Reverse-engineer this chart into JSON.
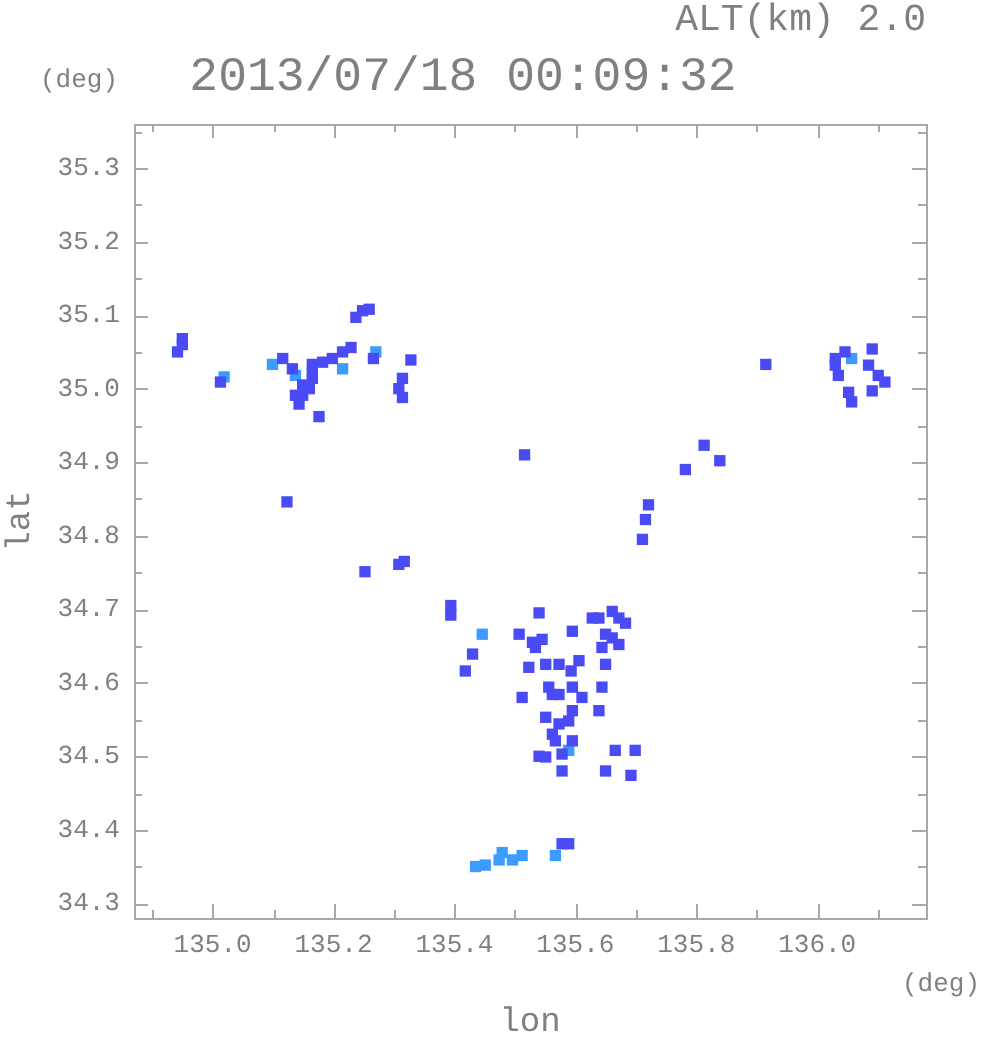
{
  "chart_data": {
    "type": "scatter",
    "title": "2013/07/18 00:09:32",
    "xlabel": "lon",
    "ylabel": "lat",
    "annotations": [
      "ALT(km) 2.0",
      "(deg)",
      "(deg)"
    ],
    "marker": "square",
    "xlim": [
      134.87,
      136.18
    ],
    "ylim": [
      34.28,
      35.36
    ],
    "xticks": [
      {
        "value": 134.9,
        "label": null
      },
      {
        "value": 135,
        "label": "135.0"
      },
      {
        "value": 135.1,
        "label": null
      },
      135.2,
      {
        "value": 135.3,
        "label": null
      },
      135.4,
      {
        "value": 135.5,
        "label": null
      },
      135.6,
      {
        "value": 135.7,
        "label": null
      },
      135.8,
      {
        "value": 135.9,
        "label": null
      },
      {
        "value": 136,
        "label": "136.0"
      },
      {
        "value": 136.1,
        "label": null
      }
    ],
    "yticks": [
      34.3,
      {
        "value": 34.35,
        "label": null
      },
      34.4,
      {
        "value": 34.45,
        "label": null
      },
      34.5,
      {
        "value": 34.55,
        "label": null
      },
      34.6,
      {
        "value": 34.65,
        "label": null
      },
      34.7,
      {
        "value": 34.75,
        "label": null
      },
      34.8,
      {
        "value": 34.85,
        "label": null
      },
      34.9,
      {
        "value": 34.95,
        "label": null
      },
      {
        "value": 35,
        "label": "35.0"
      },
      {
        "value": 35.05,
        "label": null
      },
      35.1,
      {
        "value": 35.15,
        "label": null
      },
      35.2,
      {
        "value": 35.25,
        "label": null
      },
      35.3,
      {
        "value": 35.35,
        "label": null
      }
    ],
    "series": [
      {
        "color": "#4b4bf5",
        "x": [
          134.95,
          134.95,
          134.942,
          135.013,
          135.116,
          135.149,
          135.149,
          135.132,
          135.16,
          135.143,
          135.165,
          135.137,
          135.165,
          135.182,
          135.198,
          135.215,
          135.229,
          135.165,
          135.176,
          135.248,
          135.237,
          135.259,
          135.266,
          135.328,
          135.308,
          135.314,
          135.314,
          135.123,
          135.915,
          136.046,
          136.091,
          136.085,
          136.112,
          136.091,
          136.052,
          136.057,
          136.03,
          136.035,
          136.03,
          136.101,
          135.516,
          135.813,
          135.782,
          135.839,
          135.721,
          135.716,
          135.711,
          135.252,
          135.308,
          135.317,
          135.394,
          135.394,
          135.54,
          135.661,
          135.672,
          135.639,
          135.683,
          135.628,
          135.43,
          135.418,
          135.507,
          135.529,
          135.545,
          135.534,
          135.595,
          135.65,
          135.606,
          135.593,
          135.573,
          135.551,
          135.523,
          135.644,
          135.661,
          135.672,
          135.65,
          135.512,
          135.562,
          135.611,
          135.556,
          135.644,
          135.639,
          135.595,
          135.573,
          135.595,
          135.589,
          135.551,
          135.573,
          135.562,
          135.567,
          135.595,
          135.578,
          135.54,
          135.551,
          135.578,
          135.666,
          135.65,
          135.692,
          135.699,
          135.578,
          135.589
        ],
        "values": [
          35.068,
          35.06,
          35.05,
          35.009,
          35.041,
          35.005,
          34.991,
          35.027,
          35.0,
          34.979,
          35.022,
          34.991,
          35.014,
          35.036,
          35.041,
          35.05,
          35.056,
          35.033,
          34.962,
          35.106,
          35.097,
          35.108,
          35.041,
          35.039,
          35.0,
          35.014,
          34.988,
          34.846,
          35.033,
          35.05,
          35.054,
          35.032,
          35.009,
          34.997,
          34.995,
          34.982,
          35.032,
          35.018,
          35.041,
          35.018,
          34.91,
          34.923,
          34.89,
          34.902,
          34.842,
          34.822,
          34.795,
          34.751,
          34.761,
          34.765,
          34.705,
          34.692,
          34.695,
          34.697,
          34.688,
          34.688,
          34.681,
          34.688,
          34.639,
          34.616,
          34.666,
          34.655,
          34.659,
          34.648,
          34.67,
          34.666,
          34.63,
          34.616,
          34.625,
          34.625,
          34.621,
          34.648,
          34.661,
          34.652,
          34.625,
          34.58,
          34.584,
          34.58,
          34.594,
          34.594,
          34.562,
          34.594,
          34.584,
          34.562,
          34.548,
          34.553,
          34.544,
          34.53,
          34.521,
          34.521,
          34.503,
          34.5,
          34.499,
          34.48,
          34.508,
          34.48,
          34.474,
          34.508,
          34.381,
          34.381
        ]
      },
      {
        "color": "#3c9bff",
        "x": [
          135.019,
          135.099,
          135.137,
          135.215,
          135.27,
          136.057,
          135.446,
          135.589,
          135.435,
          135.451,
          135.474,
          135.496,
          135.512,
          135.479,
          135.567
        ],
        "values": [
          35.016,
          35.033,
          35.018,
          35.027,
          35.05,
          35.041,
          34.666,
          34.508,
          34.35,
          34.352,
          34.359,
          34.359,
          34.365,
          34.369,
          34.365
        ]
      }
    ]
  }
}
